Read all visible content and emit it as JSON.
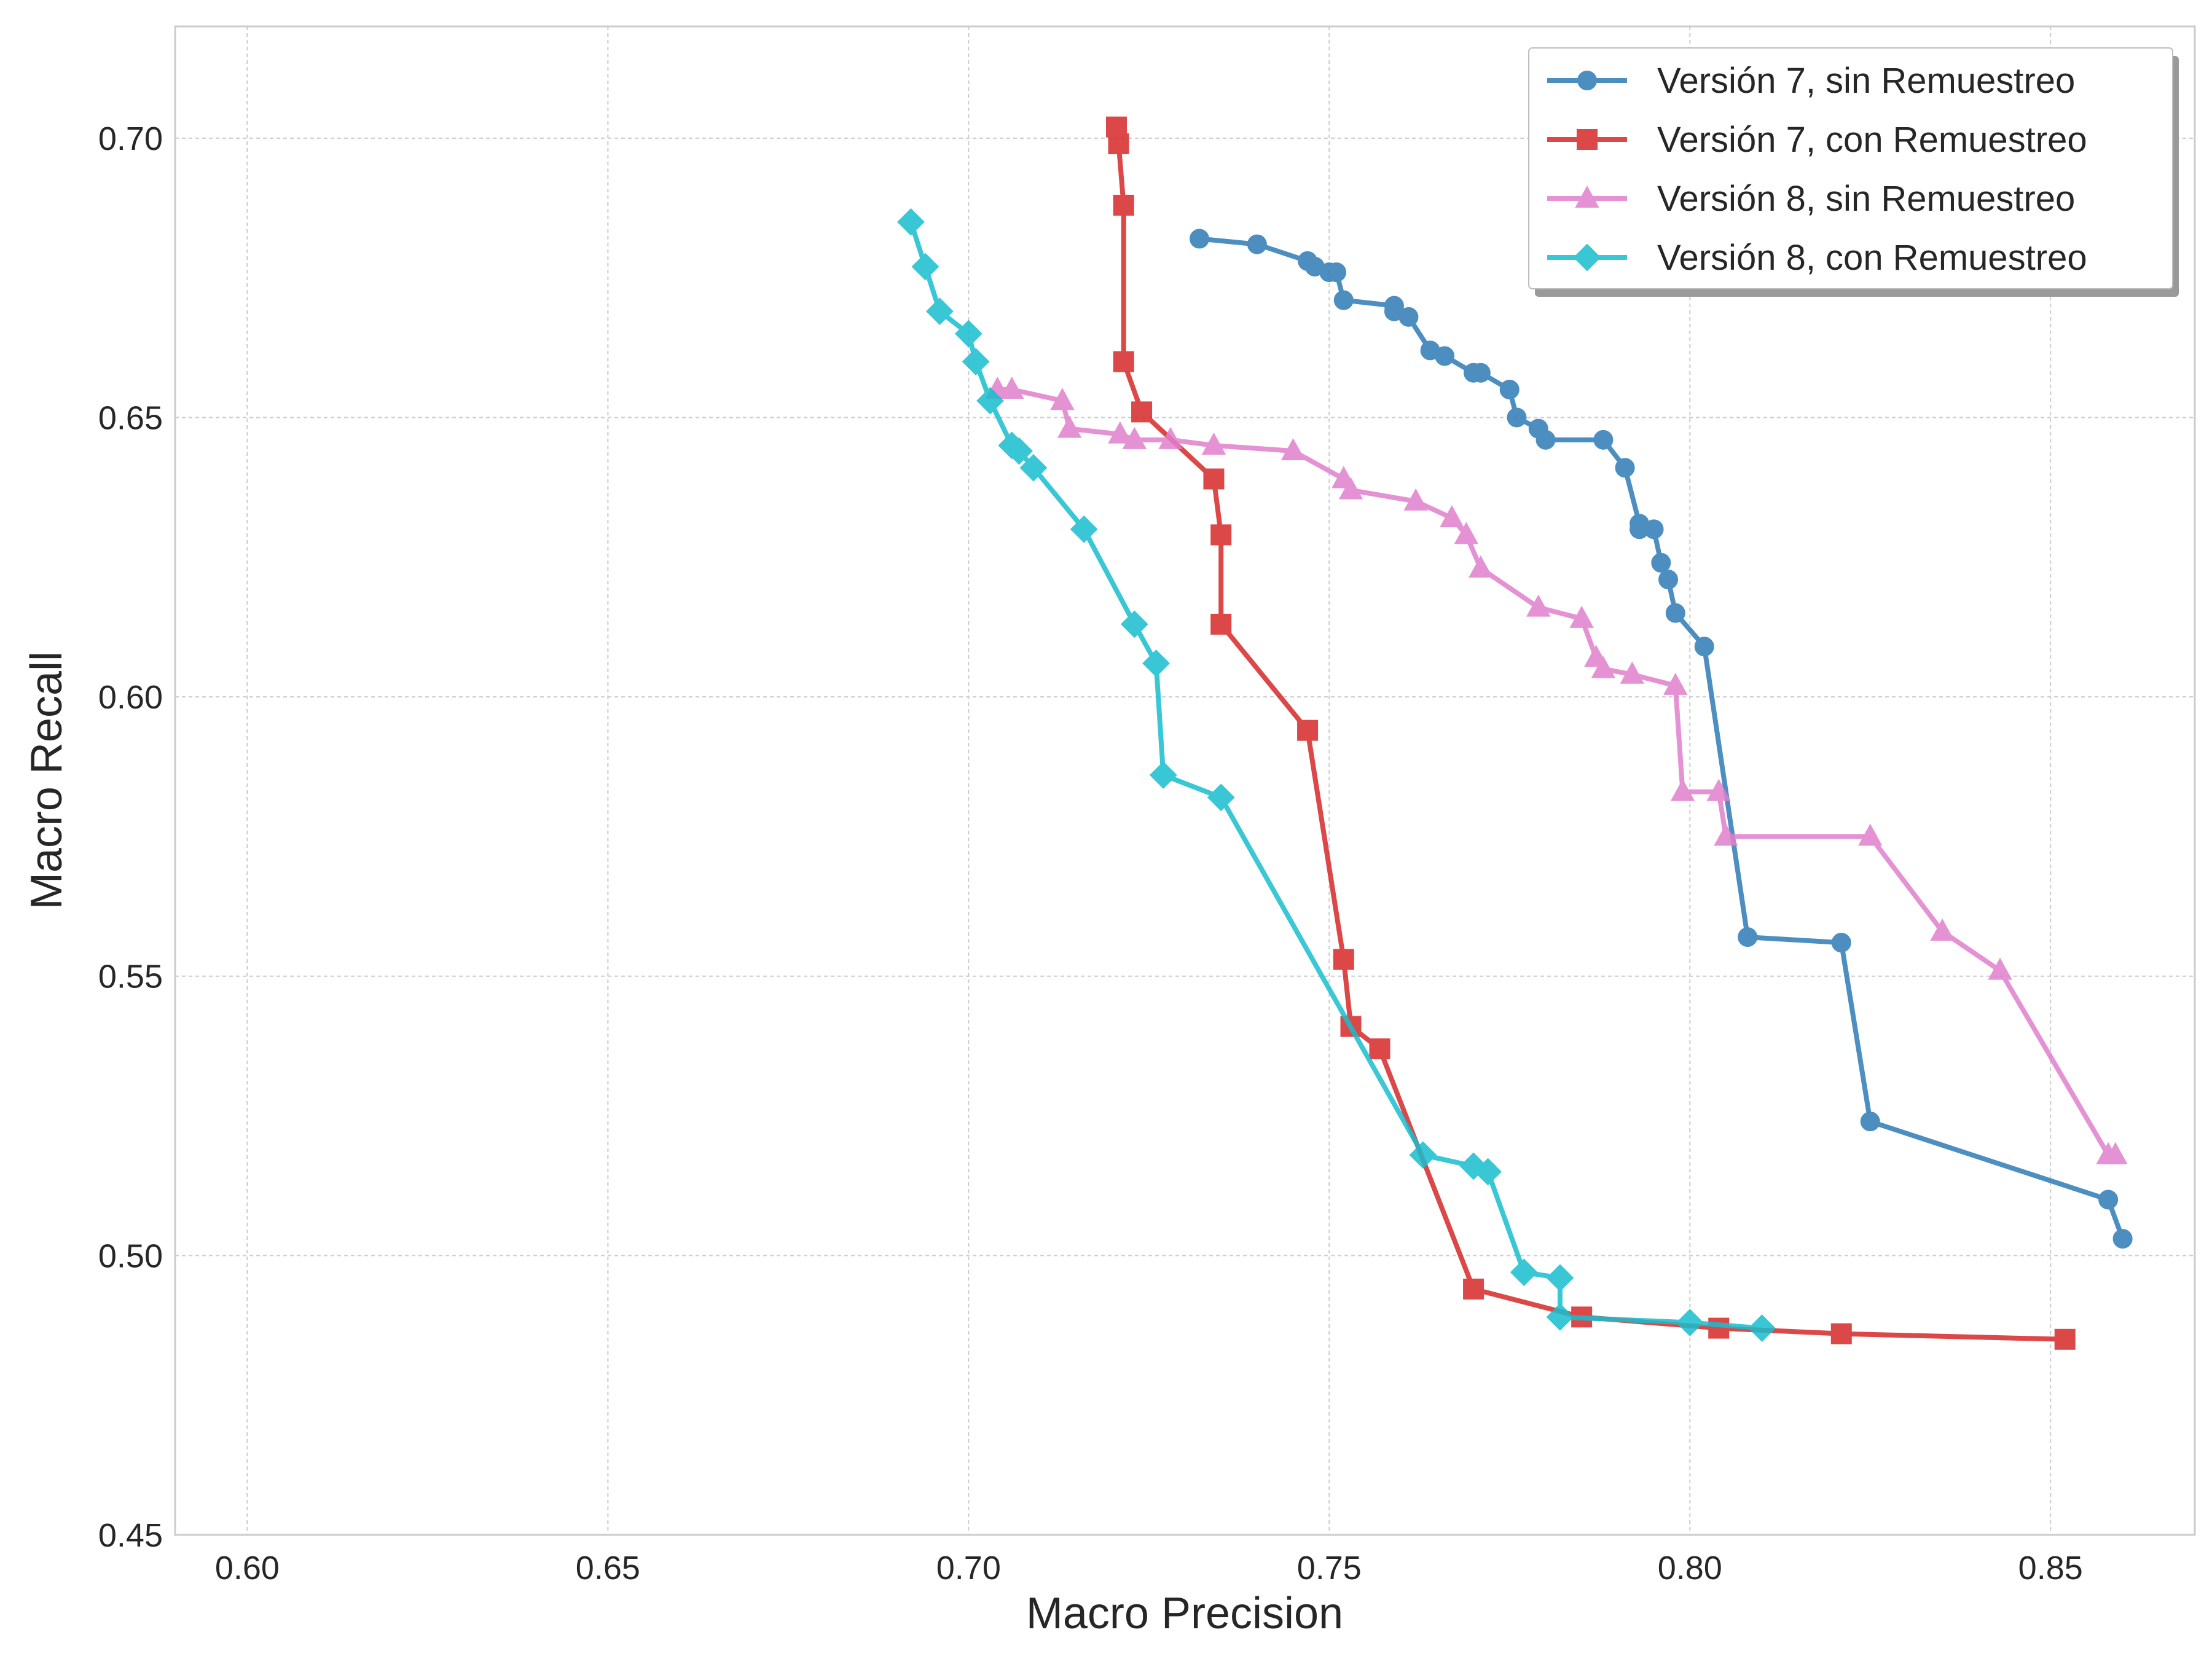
{
  "chart_data": {
    "type": "line",
    "xlabel": "Macro Precision",
    "ylabel": "Macro Recall",
    "xlim": [
      0.59,
      0.87
    ],
    "ylim": [
      0.45,
      0.72
    ],
    "xticks": [
      0.6,
      0.65,
      0.7,
      0.75,
      0.8,
      0.85
    ],
    "yticks": [
      0.45,
      0.5,
      0.55,
      0.6,
      0.65,
      0.7
    ],
    "xtick_labels": [
      "0.60",
      "0.65",
      "0.70",
      "0.75",
      "0.80",
      "0.85"
    ],
    "ytick_labels": [
      "0.45",
      "0.50",
      "0.55",
      "0.60",
      "0.65",
      "0.70"
    ],
    "grid": true,
    "legend_position": "top-right",
    "series": [
      {
        "name": "Versión 7, sin Remuestreo",
        "color": "#2f7bb6",
        "marker": "circle",
        "points": [
          [
            0.732,
            0.682
          ],
          [
            0.74,
            0.681
          ],
          [
            0.747,
            0.678
          ],
          [
            0.748,
            0.677
          ],
          [
            0.75,
            0.676
          ],
          [
            0.751,
            0.676
          ],
          [
            0.752,
            0.671
          ],
          [
            0.759,
            0.67
          ],
          [
            0.759,
            0.669
          ],
          [
            0.761,
            0.668
          ],
          [
            0.764,
            0.662
          ],
          [
            0.766,
            0.661
          ],
          [
            0.77,
            0.658
          ],
          [
            0.771,
            0.658
          ],
          [
            0.775,
            0.655
          ],
          [
            0.776,
            0.65
          ],
          [
            0.779,
            0.648
          ],
          [
            0.78,
            0.646
          ],
          [
            0.788,
            0.646
          ],
          [
            0.791,
            0.641
          ],
          [
            0.793,
            0.631
          ],
          [
            0.793,
            0.63
          ],
          [
            0.795,
            0.63
          ],
          [
            0.796,
            0.624
          ],
          [
            0.797,
            0.621
          ],
          [
            0.798,
            0.615
          ],
          [
            0.802,
            0.609
          ],
          [
            0.808,
            0.557
          ],
          [
            0.821,
            0.556
          ],
          [
            0.825,
            0.524
          ],
          [
            0.858,
            0.51
          ],
          [
            0.86,
            0.503
          ]
        ]
      },
      {
        "name": "Versión 7, con Remuestreo",
        "color": "#d62728",
        "marker": "square",
        "points": [
          [
            0.7205,
            0.702
          ],
          [
            0.7208,
            0.699
          ],
          [
            0.7215,
            0.688
          ],
          [
            0.7215,
            0.66
          ],
          [
            0.724,
            0.651
          ],
          [
            0.734,
            0.639
          ],
          [
            0.735,
            0.629
          ],
          [
            0.735,
            0.613
          ],
          [
            0.747,
            0.594
          ],
          [
            0.752,
            0.553
          ],
          [
            0.753,
            0.541
          ],
          [
            0.757,
            0.537
          ],
          [
            0.77,
            0.494
          ],
          [
            0.785,
            0.489
          ],
          [
            0.804,
            0.487
          ],
          [
            0.821,
            0.486
          ],
          [
            0.852,
            0.485
          ]
        ]
      },
      {
        "name": "Versión 8, sin Remuestreo",
        "color": "#e17fcd",
        "marker": "triangle",
        "points": [
          [
            0.704,
            0.655
          ],
          [
            0.706,
            0.655
          ],
          [
            0.713,
            0.653
          ],
          [
            0.714,
            0.648
          ],
          [
            0.721,
            0.647
          ],
          [
            0.723,
            0.646
          ],
          [
            0.728,
            0.646
          ],
          [
            0.734,
            0.645
          ],
          [
            0.745,
            0.644
          ],
          [
            0.752,
            0.639
          ],
          [
            0.753,
            0.637
          ],
          [
            0.762,
            0.635
          ],
          [
            0.767,
            0.632
          ],
          [
            0.769,
            0.629
          ],
          [
            0.771,
            0.623
          ],
          [
            0.779,
            0.616
          ],
          [
            0.785,
            0.614
          ],
          [
            0.787,
            0.607
          ],
          [
            0.788,
            0.605
          ],
          [
            0.792,
            0.604
          ],
          [
            0.798,
            0.602
          ],
          [
            0.799,
            0.583
          ],
          [
            0.804,
            0.583
          ],
          [
            0.805,
            0.575
          ],
          [
            0.825,
            0.575
          ],
          [
            0.835,
            0.558
          ],
          [
            0.843,
            0.551
          ],
          [
            0.858,
            0.518
          ],
          [
            0.859,
            0.518
          ]
        ]
      },
      {
        "name": "Versión 8, con Remuestreo",
        "color": "#17becf",
        "marker": "diamond",
        "points": [
          [
            0.692,
            0.685
          ],
          [
            0.694,
            0.677
          ],
          [
            0.696,
            0.669
          ],
          [
            0.7,
            0.665
          ],
          [
            0.701,
            0.66
          ],
          [
            0.703,
            0.653
          ],
          [
            0.706,
            0.645
          ],
          [
            0.707,
            0.644
          ],
          [
            0.709,
            0.641
          ],
          [
            0.716,
            0.63
          ],
          [
            0.723,
            0.613
          ],
          [
            0.726,
            0.606
          ],
          [
            0.727,
            0.586
          ],
          [
            0.735,
            0.582
          ],
          [
            0.763,
            0.518
          ],
          [
            0.77,
            0.516
          ],
          [
            0.772,
            0.515
          ],
          [
            0.777,
            0.497
          ],
          [
            0.782,
            0.496
          ],
          [
            0.782,
            0.489
          ],
          [
            0.8,
            0.488
          ],
          [
            0.81,
            0.487
          ]
        ]
      }
    ]
  }
}
